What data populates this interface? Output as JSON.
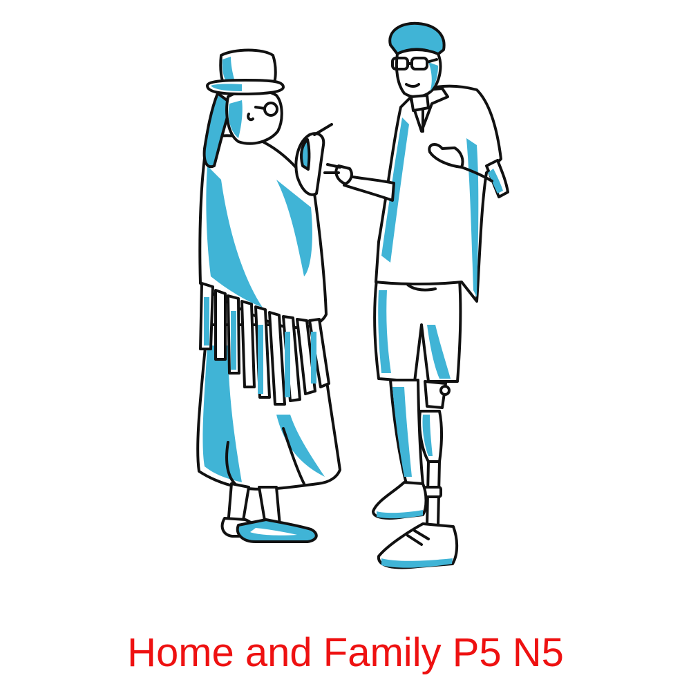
{
  "caption": "Home and Family P5 N5",
  "colors": {
    "caption": "#ee1111",
    "ink": "#111111",
    "shade": "#40b4d6",
    "background": "#ffffff"
  },
  "figures": {
    "left": "woman-in-bowler-hat-and-fringed-shawl-pointing",
    "right": "young-man-with-glasses-and-prosthetic-leg-gesturing"
  }
}
